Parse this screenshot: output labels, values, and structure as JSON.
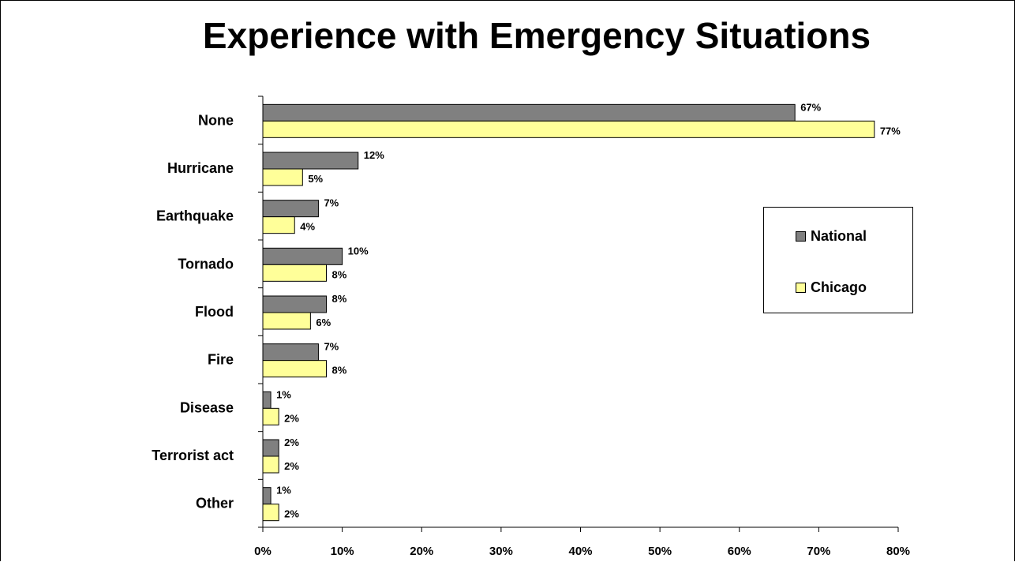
{
  "chart_data": {
    "type": "bar",
    "orientation": "horizontal",
    "title": "Experience with Emergency Situations",
    "categories": [
      "None",
      "Hurricane",
      "Earthquake",
      "Tornado",
      "Flood",
      "Fire",
      "Disease",
      "Terrorist act",
      "Other"
    ],
    "series": [
      {
        "name": "National",
        "color": "#808080",
        "values": [
          67,
          12,
          7,
          10,
          8,
          7,
          1,
          2,
          1
        ]
      },
      {
        "name": "Chicago",
        "color": "#FFFF99",
        "values": [
          77,
          5,
          4,
          8,
          6,
          8,
          2,
          2,
          2
        ]
      }
    ],
    "xlim": [
      0,
      80
    ],
    "x_ticks": [
      0,
      10,
      20,
      30,
      40,
      50,
      60,
      70,
      80
    ],
    "value_suffix": "%",
    "grid": false,
    "legend_position": "right"
  }
}
